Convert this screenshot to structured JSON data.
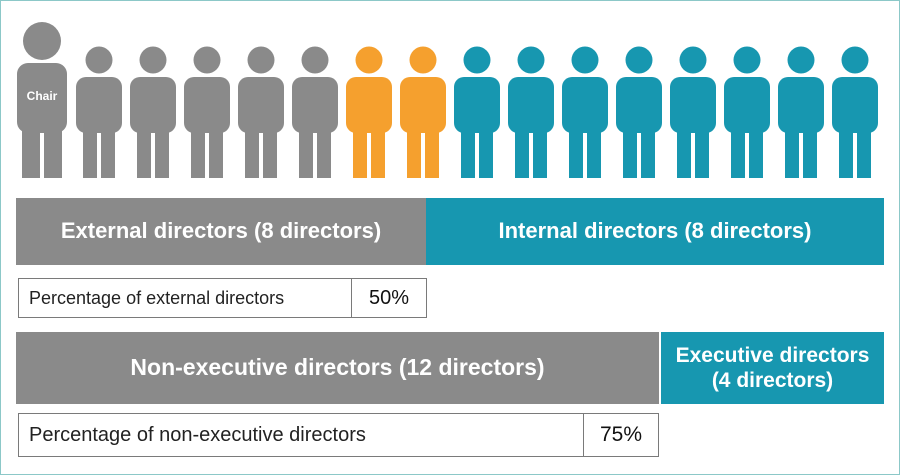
{
  "colors": {
    "grey": "#8a8a8a",
    "orange": "#f5a02e",
    "teal": "#1797b0"
  },
  "figures": {
    "chair_label": "Chair",
    "people": [
      {
        "role": "chair",
        "color": "grey"
      },
      {
        "role": "external",
        "color": "grey"
      },
      {
        "role": "external",
        "color": "grey"
      },
      {
        "role": "external",
        "color": "grey"
      },
      {
        "role": "external",
        "color": "grey"
      },
      {
        "role": "external",
        "color": "grey"
      },
      {
        "role": "external",
        "color": "orange"
      },
      {
        "role": "external",
        "color": "orange"
      },
      {
        "role": "internal",
        "color": "teal"
      },
      {
        "role": "internal",
        "color": "teal"
      },
      {
        "role": "internal",
        "color": "teal"
      },
      {
        "role": "internal",
        "color": "teal"
      },
      {
        "role": "internal",
        "color": "teal"
      },
      {
        "role": "internal",
        "color": "teal"
      },
      {
        "role": "internal",
        "color": "teal"
      },
      {
        "role": "internal",
        "color": "teal"
      }
    ]
  },
  "row1": {
    "external_label": "External directors (8 directors)",
    "internal_label": "Internal directors (8 directors)",
    "percentage_label": "Percentage of external directors",
    "percentage_value": "50%"
  },
  "row2": {
    "nonexec_label": "Non-executive directors (12 directors)",
    "exec_label_line1": "Executive directors",
    "exec_label_line2": "(4 directors)",
    "percentage_label": "Percentage of non-executive directors",
    "percentage_value": "75%"
  }
}
